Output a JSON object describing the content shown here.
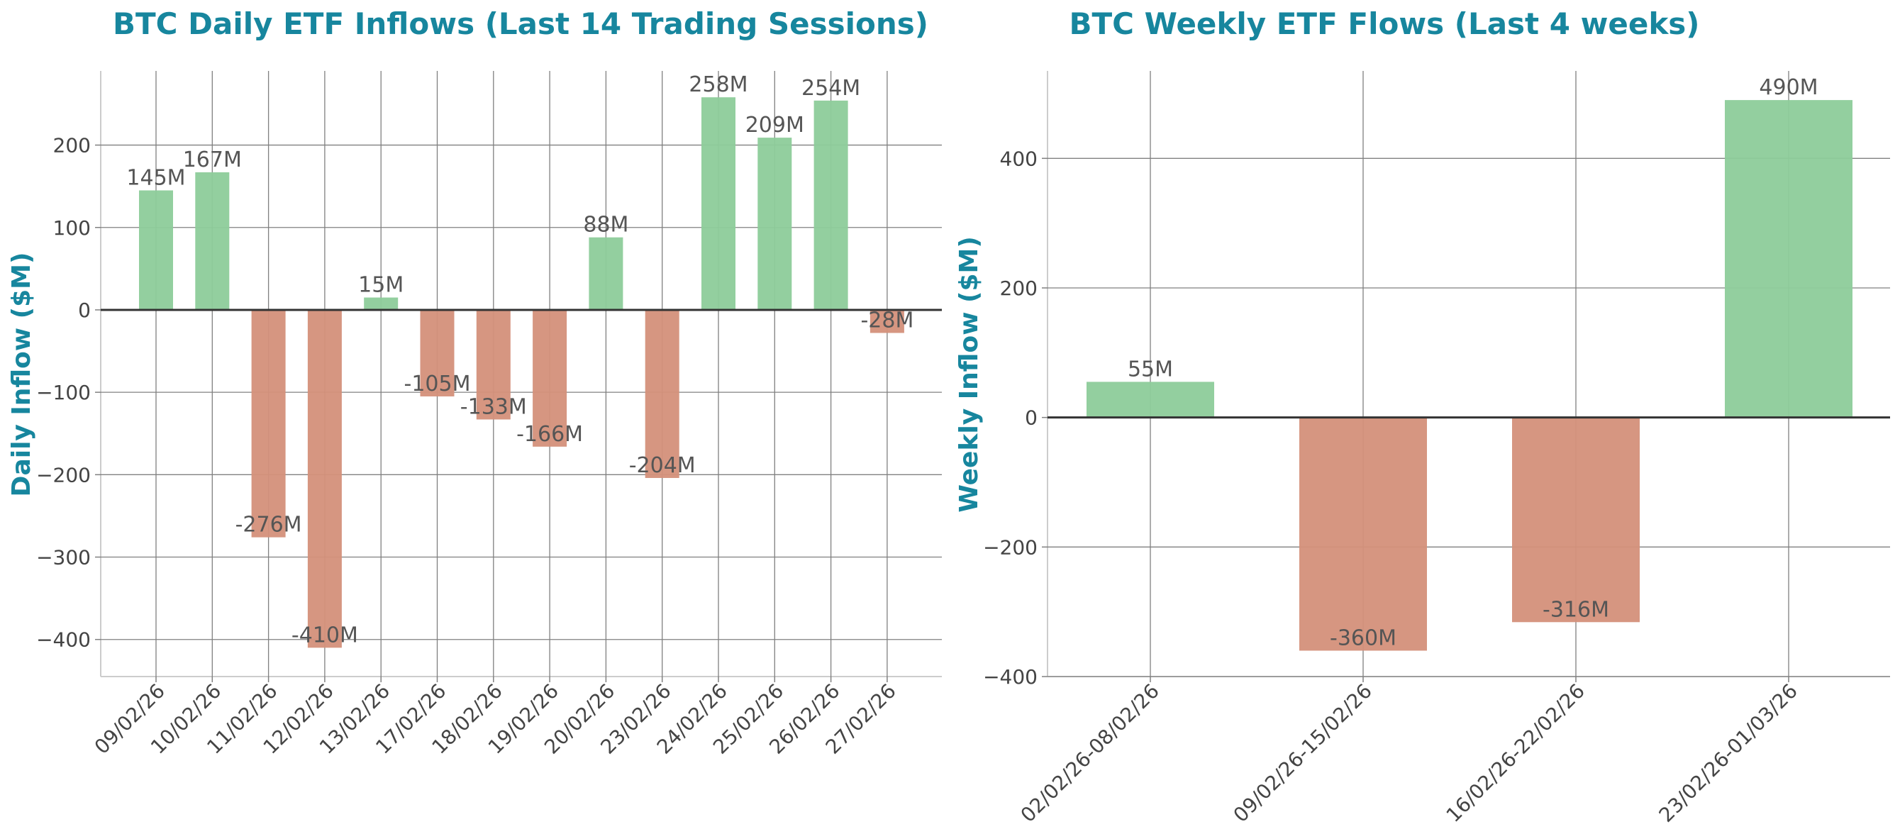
{
  "colors": {
    "title": "#17869e",
    "positive": "#8dcc9a",
    "negative": "#d4907a",
    "grid": "#808080",
    "axis": "#cccccc",
    "zero_line": "#333333",
    "text": "#444444"
  },
  "chart_data": [
    {
      "type": "bar",
      "title": "BTC Daily ETF Inflows (Last 14 Trading Sessions)",
      "xlabel": "",
      "ylabel": "Daily Inflow ($M)",
      "categories": [
        "09/02/26",
        "10/02/26",
        "11/02/26",
        "12/02/26",
        "13/02/26",
        "17/02/26",
        "18/02/26",
        "19/02/26",
        "20/02/26",
        "23/02/26",
        "24/02/26",
        "25/02/26",
        "26/02/26",
        "27/02/26"
      ],
      "values": [
        145,
        167,
        -276,
        -410,
        15,
        -105,
        -133,
        -166,
        88,
        -204,
        258,
        209,
        254,
        -28
      ],
      "data_labels": [
        "145M",
        "167M",
        "-276M",
        "-410M",
        "15M",
        "-105M",
        "-133M",
        "-166M",
        "88M",
        "-204M",
        "258M",
        "209M",
        "254M",
        "-28M"
      ],
      "yticks": [
        -400,
        -300,
        -200,
        -100,
        0,
        100,
        200
      ],
      "ytick_labels": [
        "−400",
        "−300",
        "−200",
        "−100",
        "0",
        "100",
        "200"
      ],
      "ylim": [
        -445,
        290
      ],
      "grid": true,
      "x_tick_rotation": 45
    },
    {
      "type": "bar",
      "title": "BTC Weekly ETF Flows (Last 4 weeks)",
      "xlabel": "",
      "ylabel": "Weekly Inflow ($M)",
      "categories": [
        "02/02/26-08/02/26",
        "09/02/26-15/02/26",
        "16/02/26-22/02/26",
        "23/02/26-01/03/26"
      ],
      "values": [
        55,
        -360,
        -316,
        490
      ],
      "data_labels": [
        "55M",
        "-360M",
        "-316M",
        "490M"
      ],
      "yticks": [
        -400,
        -200,
        0,
        200,
        400
      ],
      "ytick_labels": [
        "−400",
        "−200",
        "0",
        "200",
        "400"
      ],
      "ylim": [
        -400,
        535
      ],
      "grid": true,
      "x_tick_rotation": 45
    }
  ]
}
